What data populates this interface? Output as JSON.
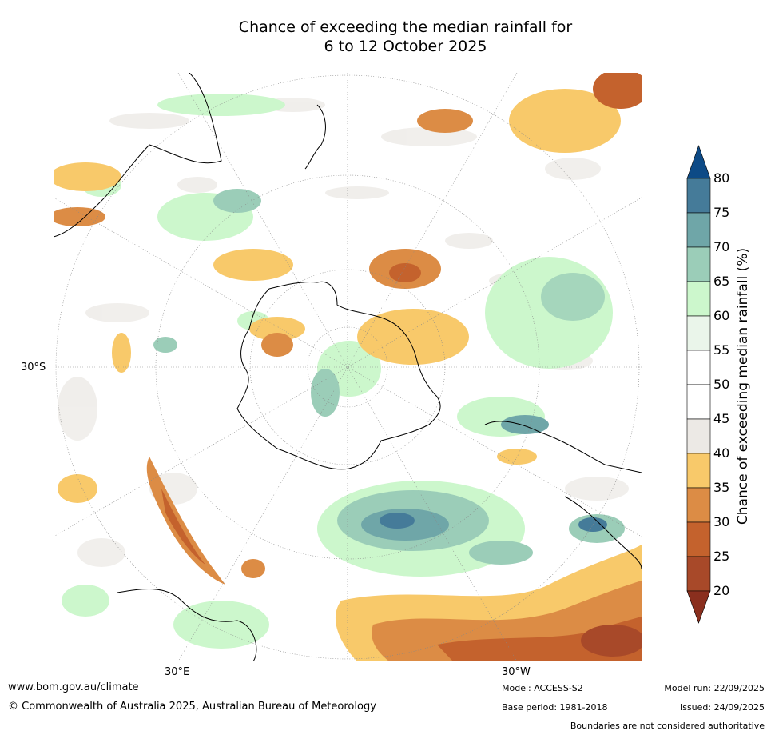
{
  "title": {
    "line1": "Chance of exceeding the median rainfall for",
    "line2": "6 to 12 October 2025"
  },
  "map": {
    "projection": "south-polar stereographic",
    "axis_labels": {
      "lat": "30°S",
      "lon_east": "30°E",
      "lon_west": "30°W"
    },
    "regions": [
      {
        "name": "antarctica",
        "desc": "mostly 40-65%, green patch near pole"
      },
      {
        "name": "south-america-south",
        "desc": "20-40% dry"
      },
      {
        "name": "south-atlantic-anomaly",
        "desc": "65-80% wet"
      },
      {
        "name": "indian-ocean-streak",
        "desc": "20-40% dry"
      }
    ]
  },
  "colorbar": {
    "label": "Chance of exceeding median rainfall (%)",
    "ticks": [
      "80",
      "75",
      "70",
      "65",
      "60",
      "55",
      "50",
      "45",
      "40",
      "35",
      "30",
      "25",
      "20"
    ],
    "colors": {
      "above80": "#0d4a86",
      "75-80": "#457b99",
      "70-75": "#6fa6a8",
      "65-70": "#9bcdb8",
      "60-65": "#ccf7cc",
      "55-60": "#eaf5ea",
      "50-55": "#ffffff",
      "45-50": "#ffffff",
      "40-45": "#ece9e5",
      "35-40": "#f8c96a",
      "30-35": "#dc8c45",
      "25-30": "#c4622d",
      "20-25": "#a84929",
      "below20": "#8a2f1e"
    }
  },
  "footer": {
    "website": "www.bom.gov.au/climate",
    "copyright": "© Commonwealth of Australia 2025, Australian Bureau of Meteorology",
    "model": "Model: ACCESS-S2",
    "base_period": "Base period: 1981-2018",
    "model_run": "Model run: 22/09/2025",
    "issued": "Issued: 24/09/2025",
    "disclaimer": "Boundaries are not considered authoritative"
  }
}
